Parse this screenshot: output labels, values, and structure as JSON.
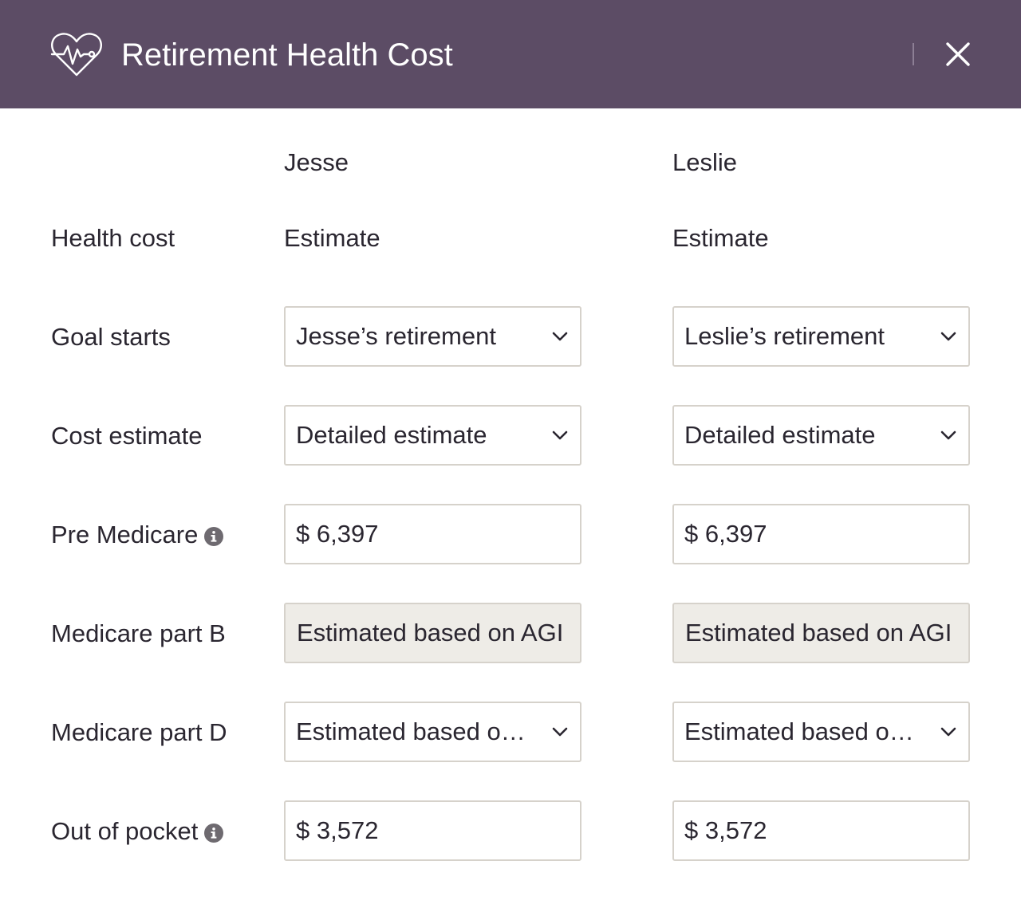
{
  "header": {
    "title": "Retirement Health Cost",
    "logo_icon": "heart-pulse-icon",
    "close_icon": "close-icon",
    "background": "#5c4c65"
  },
  "columns": [
    {
      "name": "Jesse"
    },
    {
      "name": "Leslie"
    }
  ],
  "rows": {
    "health_cost": {
      "label": "Health cost",
      "values": [
        "Estimate",
        "Estimate"
      ]
    },
    "goal_starts": {
      "label": "Goal starts",
      "values": [
        "Jesse’s retirement",
        "Leslie’s retirement"
      ]
    },
    "cost_estimate": {
      "label": "Cost estimate",
      "values": [
        "Detailed estimate",
        "Detailed estimate"
      ]
    },
    "pre_medicare": {
      "label": "Pre Medicare",
      "info_icon": "info-icon",
      "values": [
        "$ 6,397",
        "$ 6,397"
      ]
    },
    "medicare_b": {
      "label": "Medicare part B",
      "values": [
        "Estimated based on AGI",
        "Estimated based on AGI"
      ]
    },
    "medicare_d": {
      "label": "Medicare part D",
      "values": [
        "Estimated based on AGI",
        "Estimated based on AGI"
      ]
    },
    "out_of_pocket": {
      "label": "Out of pocket",
      "info_icon": "info-icon",
      "values": [
        "$ 3,572",
        "$ 3,572"
      ]
    }
  }
}
